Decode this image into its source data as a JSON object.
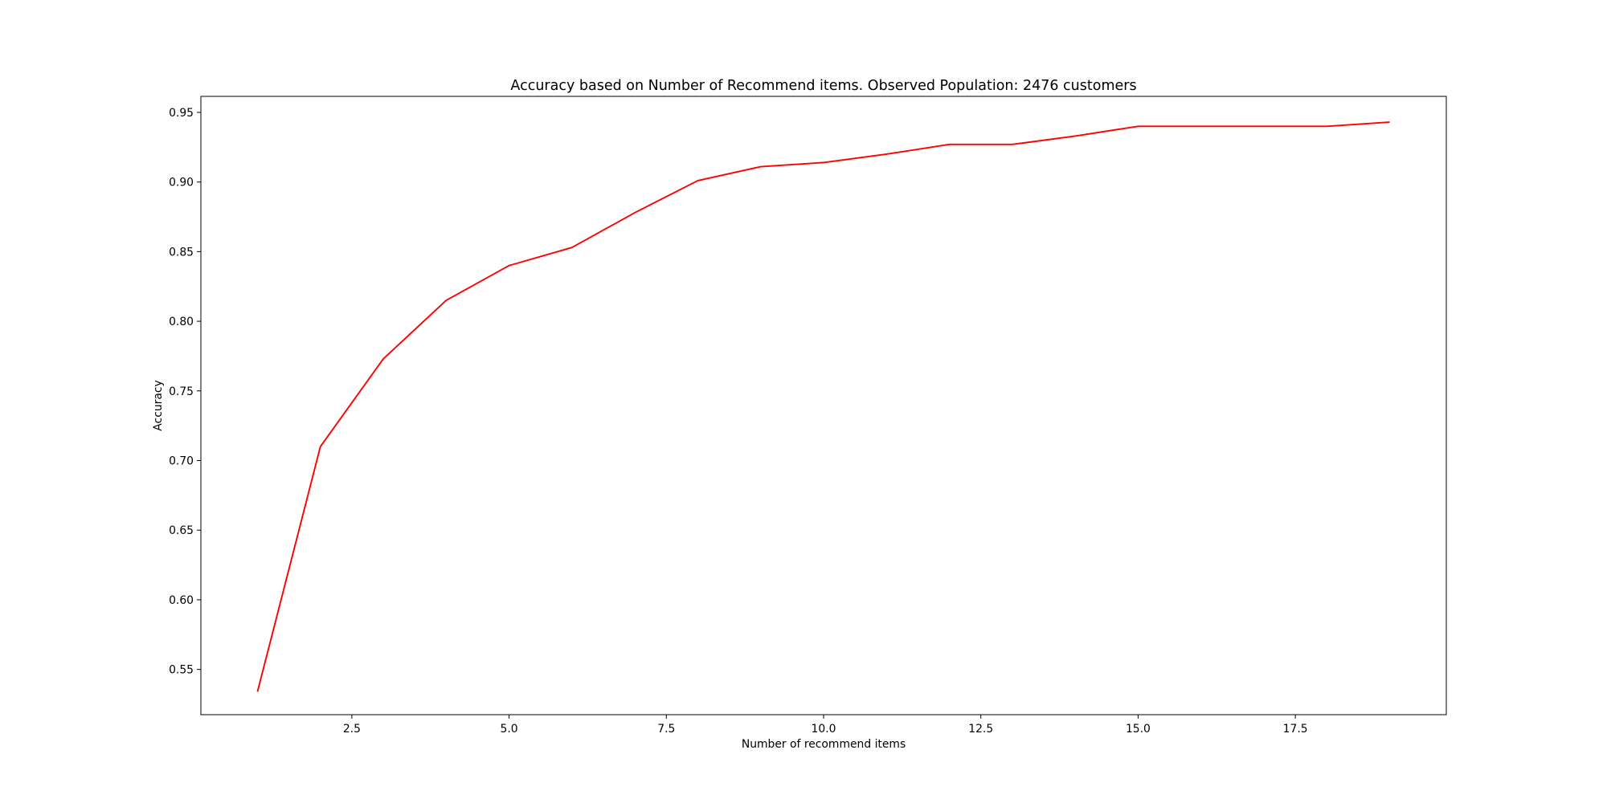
{
  "chart_data": {
    "type": "line",
    "title": "Accuracy based on Number of Recommend items. Observed Population: 2476 customers",
    "xlabel": "Number of recommend items",
    "ylabel": "Accuracy",
    "xlim": [
      0.1,
      19.9
    ],
    "ylim": [
      0.5175,
      0.9615
    ],
    "xticks": [
      2.5,
      5.0,
      7.5,
      10.0,
      12.5,
      15.0,
      17.5
    ],
    "xtick_labels": [
      "2.5",
      "5.0",
      "7.5",
      "10.0",
      "12.5",
      "15.0",
      "17.5"
    ],
    "yticks": [
      0.55,
      0.6,
      0.65,
      0.7,
      0.75,
      0.8,
      0.85,
      0.9,
      0.95
    ],
    "ytick_labels": [
      "0.55",
      "0.60",
      "0.65",
      "0.70",
      "0.75",
      "0.80",
      "0.85",
      "0.90",
      "0.95"
    ],
    "grid": false,
    "series": [
      {
        "color": "#ff0000",
        "x": [
          1,
          2,
          3,
          4,
          5,
          6,
          7,
          8,
          9,
          10,
          11,
          12,
          13,
          14,
          15,
          16,
          17,
          18,
          19
        ],
        "y": [
          0.534,
          0.71,
          0.773,
          0.815,
          0.84,
          0.853,
          0.878,
          0.901,
          0.911,
          0.914,
          0.92,
          0.927,
          0.927,
          0.933,
          0.94,
          0.94,
          0.94,
          0.94,
          0.943
        ]
      }
    ]
  }
}
